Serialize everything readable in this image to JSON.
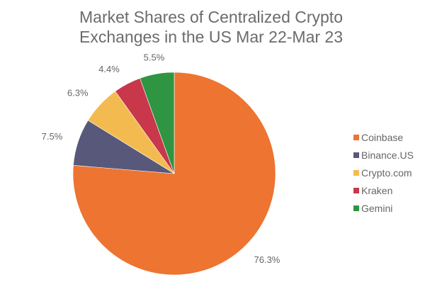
{
  "chart_data": {
    "type": "pie",
    "title_lines": [
      "Market Shares of Centralized Crypto",
      "Exchanges in the US Mar 22-Mar 23"
    ],
    "legend_position": "right",
    "start_angle": "12 o'clock",
    "direction": "clockwise",
    "slices": [
      {
        "label": "Coinbase",
        "value": 76.3,
        "display": "76.3%",
        "color": "#ed7431"
      },
      {
        "label": "Binance.US",
        "value": 7.5,
        "display": "7.5%",
        "color": "#58587a"
      },
      {
        "label": "Crypto.com",
        "value": 6.3,
        "display": "6.3%",
        "color": "#f3bb4f"
      },
      {
        "label": "Kraken",
        "value": 4.4,
        "display": "4.4%",
        "color": "#c8374a"
      },
      {
        "label": "Gemini",
        "value": 5.5,
        "display": "5.5%",
        "color": "#2f9543"
      }
    ]
  }
}
